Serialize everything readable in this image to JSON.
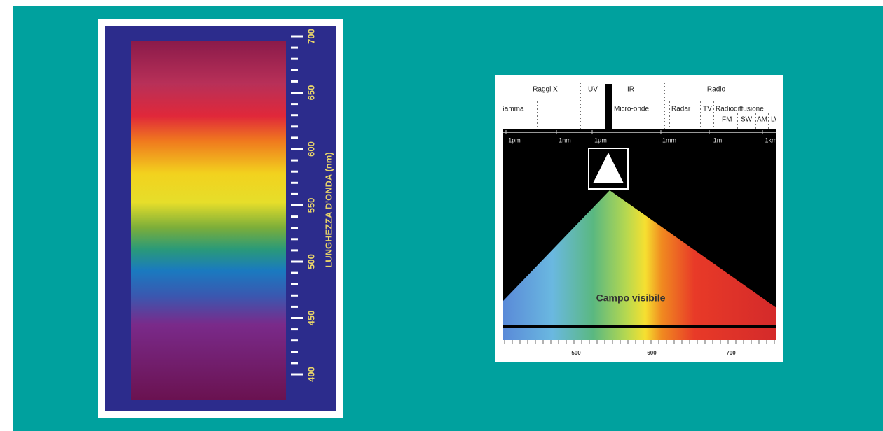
{
  "left_panel": {
    "axis_label": "LUNGHEZZA D'ONDA (nm)",
    "tick_labels": [
      "700",
      "650",
      "600",
      "550",
      "500",
      "450",
      "400"
    ]
  },
  "right_panel": {
    "bands": [
      "Raggi X",
      "UV",
      "IR",
      "Radio"
    ],
    "sub_bands": [
      "Gamma",
      "Micro-onde",
      "Radar",
      "TV",
      "Radiodiffusione",
      "FM",
      "SW",
      "AM",
      "LW"
    ],
    "scale": [
      "1pm",
      "1nm",
      "1µm",
      "1mm",
      "1m",
      "1km"
    ],
    "visible_label": "Campo visibile",
    "nm_labels": [
      "500",
      "600",
      "700"
    ]
  }
}
